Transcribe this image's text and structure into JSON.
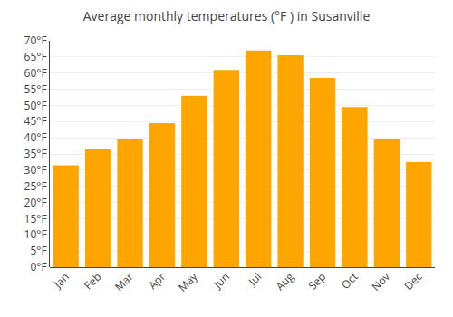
{
  "chart_data": {
    "type": "bar",
    "title": "Average monthly temperatures (°F ) in Susanville",
    "categories": [
      "Jan",
      "Feb",
      "Mar",
      "Apr",
      "May",
      "Jun",
      "Jul",
      "Aug",
      "Sep",
      "Oct",
      "Nov",
      "Dec"
    ],
    "values": [
      31.5,
      36.5,
      39.5,
      44.5,
      53.0,
      61.0,
      67.0,
      65.5,
      58.5,
      49.5,
      39.5,
      32.5
    ],
    "color": "#FFA500",
    "ylim": [
      0,
      70
    ],
    "yticks": [
      {
        "value": 0,
        "label": "0°F"
      },
      {
        "value": 5,
        "label": "5°F"
      },
      {
        "value": 10,
        "label": "10°F"
      },
      {
        "value": 15,
        "label": "15°F"
      },
      {
        "value": 20,
        "label": "20°F"
      },
      {
        "value": 25,
        "label": "25°F"
      },
      {
        "value": 30,
        "label": "30°F"
      },
      {
        "value": 35,
        "label": "35°F"
      },
      {
        "value": 40,
        "label": "40°F"
      },
      {
        "value": 45,
        "label": "45°F"
      },
      {
        "value": 50,
        "label": "50°F"
      },
      {
        "value": 55,
        "label": "55°F"
      },
      {
        "value": 60,
        "label": "60°F"
      },
      {
        "value": 65,
        "label": "65°F"
      },
      {
        "value": 70,
        "label": "70°F"
      }
    ],
    "grid": true
  }
}
